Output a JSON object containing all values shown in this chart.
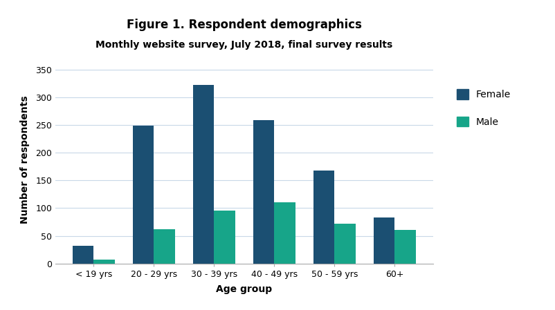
{
  "title": "Figure 1. Respondent demographics",
  "subtitle": "Monthly website survey, July 2018, final survey results",
  "categories": [
    "< 19 yrs",
    "20 - 29 yrs",
    "30 - 39 yrs",
    "40 - 49 yrs",
    "50 - 59 yrs",
    "60+"
  ],
  "female_values": [
    32,
    249,
    322,
    259,
    168,
    83
  ],
  "male_values": [
    7,
    62,
    95,
    111,
    72,
    61
  ],
  "female_color": "#1b4f72",
  "male_color": "#17a589",
  "xlabel": "Age group",
  "ylabel": "Number of respondents",
  "ylim": [
    0,
    375
  ],
  "yticks": [
    0,
    50,
    100,
    150,
    200,
    250,
    300,
    350
  ],
  "legend_labels": [
    "Female",
    "Male"
  ],
  "background_color": "#ffffff",
  "title_fontsize": 12,
  "subtitle_fontsize": 10,
  "axis_label_fontsize": 10,
  "tick_fontsize": 9,
  "bar_width": 0.35,
  "grid_color": "#c8d8e8",
  "spine_color": "#aaaaaa"
}
